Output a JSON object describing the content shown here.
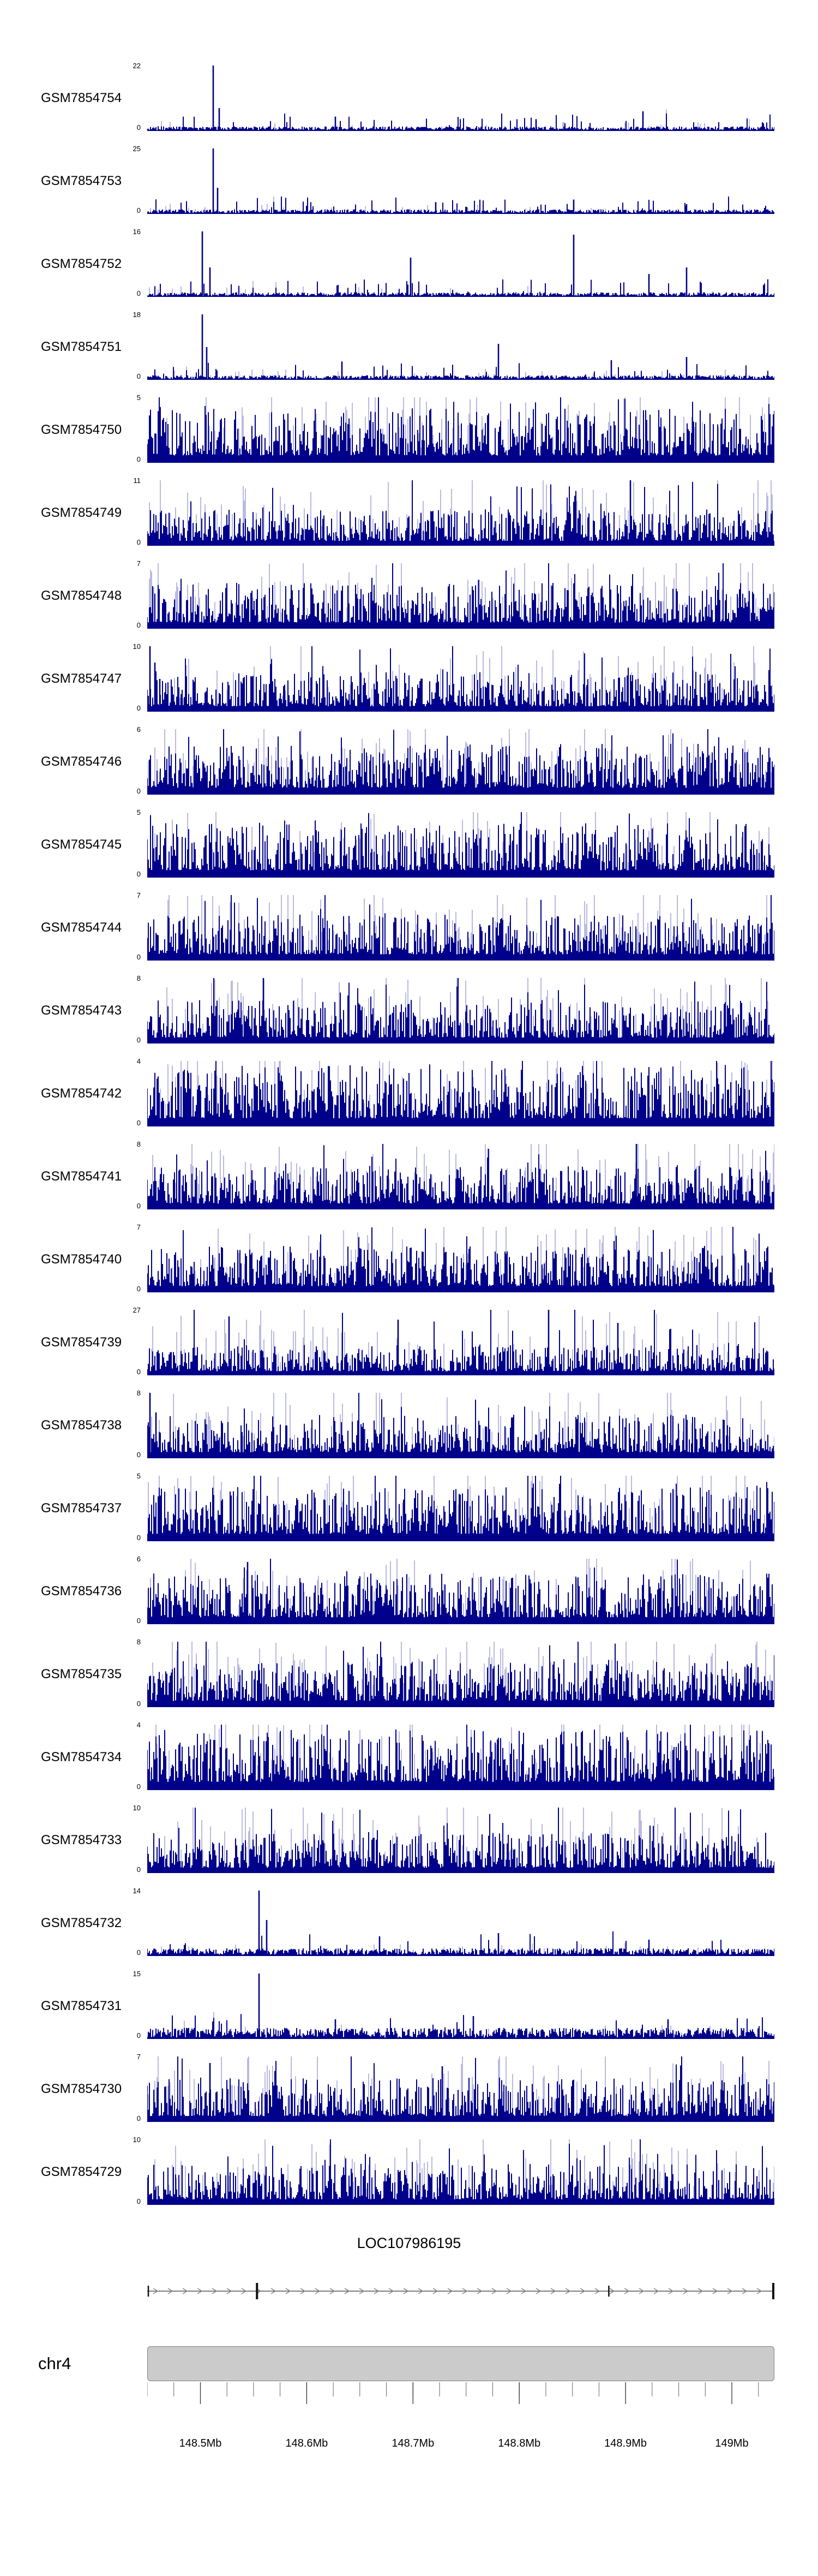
{
  "chart_data": {
    "type": "area",
    "description": "Genome browser coverage tracks",
    "signal_color": "#00008B",
    "x_axis": {
      "unit": "Mb",
      "min": 148.45,
      "max": 149.04,
      "minor_step": 0.025,
      "major_ticks": [
        {
          "value": 148.5,
          "label": "148.5Mb"
        },
        {
          "value": 148.6,
          "label": "148.6Mb"
        },
        {
          "value": 148.7,
          "label": "148.7Mb"
        },
        {
          "value": 148.8,
          "label": "148.8Mb"
        },
        {
          "value": 148.9,
          "label": "148.9Mb"
        },
        {
          "value": 149.0,
          "label": "149Mb"
        }
      ]
    },
    "tracks": [
      {
        "label": "GSM7854754",
        "ymax": 22,
        "ymin": 0,
        "style": "sparse",
        "mean": 0.05,
        "seed": 1,
        "spikes": [
          [
            0.105,
            1.0
          ],
          [
            0.115,
            0.35
          ],
          [
            0.3,
            0.22
          ],
          [
            0.62,
            0.18
          ],
          [
            0.79,
            0.3
          ]
        ]
      },
      {
        "label": "GSM7854753",
        "ymax": 25,
        "ymin": 0,
        "style": "sparse",
        "mean": 0.05,
        "seed": 2,
        "spikes": [
          [
            0.105,
            1.0
          ],
          [
            0.112,
            0.4
          ],
          [
            0.46,
            0.18
          ],
          [
            0.68,
            0.22
          ],
          [
            0.86,
            0.15
          ]
        ]
      },
      {
        "label": "GSM7854752",
        "ymax": 16,
        "ymin": 0,
        "style": "sparse",
        "mean": 0.07,
        "seed": 3,
        "spikes": [
          [
            0.088,
            1.0
          ],
          [
            0.1,
            0.45
          ],
          [
            0.42,
            0.6
          ],
          [
            0.68,
            0.95
          ],
          [
            0.8,
            0.35
          ],
          [
            0.86,
            0.45
          ]
        ]
      },
      {
        "label": "GSM7854751",
        "ymax": 18,
        "ymin": 0,
        "style": "sparse",
        "mean": 0.06,
        "seed": 4,
        "spikes": [
          [
            0.088,
            1.0
          ],
          [
            0.095,
            0.5
          ],
          [
            0.31,
            0.28
          ],
          [
            0.56,
            0.55
          ],
          [
            0.74,
            0.3
          ],
          [
            0.86,
            0.35
          ]
        ]
      },
      {
        "label": "GSM7854750",
        "ymax": 5,
        "ymin": 0,
        "style": "dense",
        "mean": 0.45,
        "seed": 5,
        "spikes": []
      },
      {
        "label": "GSM7854749",
        "ymax": 11,
        "ymin": 0,
        "style": "dense",
        "mean": 0.3,
        "seed": 6,
        "spikes": [
          [
            0.77,
            1.0
          ]
        ]
      },
      {
        "label": "GSM7854748",
        "ymax": 7,
        "ymin": 0,
        "style": "dense",
        "mean": 0.38,
        "seed": 7,
        "spikes": []
      },
      {
        "label": "GSM7854747",
        "ymax": 10,
        "ymin": 0,
        "style": "dense",
        "mean": 0.33,
        "seed": 8,
        "spikes": [
          [
            0.004,
            1.0
          ],
          [
            0.012,
            0.75
          ],
          [
            0.02,
            0.5
          ]
        ]
      },
      {
        "label": "GSM7854746",
        "ymax": 6,
        "ymin": 0,
        "style": "dense",
        "mean": 0.42,
        "seed": 9,
        "spikes": []
      },
      {
        "label": "GSM7854745",
        "ymax": 5,
        "ymin": 0,
        "style": "dense",
        "mean": 0.45,
        "seed": 10,
        "spikes": []
      },
      {
        "label": "GSM7854744",
        "ymax": 7,
        "ymin": 0,
        "style": "dense",
        "mean": 0.38,
        "seed": 11,
        "spikes": []
      },
      {
        "label": "GSM7854743",
        "ymax": 8,
        "ymin": 0,
        "style": "dense",
        "mean": 0.36,
        "seed": 12,
        "spikes": [
          [
            0.185,
            1.0
          ]
        ]
      },
      {
        "label": "GSM7854742",
        "ymax": 4,
        "ymin": 0,
        "style": "dense",
        "mean": 0.5,
        "seed": 13,
        "spikes": []
      },
      {
        "label": "GSM7854741",
        "ymax": 8,
        "ymin": 0,
        "style": "dense",
        "mean": 0.36,
        "seed": 14,
        "spikes": [
          [
            0.78,
            1.0
          ]
        ]
      },
      {
        "label": "GSM7854740",
        "ymax": 7,
        "ymin": 0,
        "style": "dense",
        "mean": 0.38,
        "seed": 15,
        "spikes": []
      },
      {
        "label": "GSM7854739",
        "ymax": 27,
        "ymin": 0,
        "style": "dense",
        "mean": 0.25,
        "seed": 16,
        "spikes": [
          [
            0.13,
            0.9
          ],
          [
            0.4,
            0.85
          ],
          [
            0.64,
            1.0
          ],
          [
            0.75,
            0.8
          ]
        ]
      },
      {
        "label": "GSM7854738",
        "ymax": 8,
        "ymin": 0,
        "style": "dense",
        "mean": 0.36,
        "seed": 17,
        "spikes": [
          [
            0.004,
            1.0
          ],
          [
            0.014,
            0.7
          ]
        ]
      },
      {
        "label": "GSM7854737",
        "ymax": 5,
        "ymin": 0,
        "style": "dense",
        "mean": 0.45,
        "seed": 18,
        "spikes": []
      },
      {
        "label": "GSM7854736",
        "ymax": 6,
        "ymin": 0,
        "style": "dense",
        "mean": 0.42,
        "seed": 19,
        "spikes": [
          [
            0.16,
            0.95
          ]
        ]
      },
      {
        "label": "GSM7854735",
        "ymax": 8,
        "ymin": 0,
        "style": "dense",
        "mean": 0.38,
        "seed": 20,
        "spikes": []
      },
      {
        "label": "GSM7854734",
        "ymax": 4,
        "ymin": 0,
        "style": "dense",
        "mean": 0.5,
        "seed": 21,
        "spikes": []
      },
      {
        "label": "GSM7854733",
        "ymax": 10,
        "ymin": 0,
        "style": "dense",
        "mean": 0.33,
        "seed": 22,
        "spikes": []
      },
      {
        "label": "GSM7854732",
        "ymax": 14,
        "ymin": 0,
        "style": "low",
        "mean": 0.1,
        "seed": 23,
        "spikes": [
          [
            0.178,
            1.0
          ],
          [
            0.19,
            0.55
          ],
          [
            0.37,
            0.3
          ],
          [
            0.56,
            0.35
          ],
          [
            0.8,
            0.25
          ]
        ]
      },
      {
        "label": "GSM7854731",
        "ymax": 15,
        "ymin": 0,
        "style": "low",
        "mean": 0.15,
        "seed": 24,
        "spikes": [
          [
            0.178,
            1.0
          ],
          [
            0.3,
            0.3
          ],
          [
            0.52,
            0.35
          ],
          [
            0.83,
            0.3
          ]
        ]
      },
      {
        "label": "GSM7854730",
        "ymax": 7,
        "ymin": 0,
        "style": "dense",
        "mean": 0.36,
        "seed": 25,
        "spikes": [
          [
            0.1,
            0.9
          ],
          [
            0.47,
            0.85
          ]
        ]
      },
      {
        "label": "GSM7854729",
        "ymax": 10,
        "ymin": 0,
        "style": "dense",
        "mean": 0.34,
        "seed": 26,
        "spikes": []
      }
    ],
    "gene_track": {
      "title": "LOC107986195",
      "strand": "forward",
      "exon_marks": [
        {
          "pos": 0.0,
          "size": "small"
        },
        {
          "pos": 0.175,
          "size": "tall"
        },
        {
          "pos": 0.736,
          "size": "small"
        },
        {
          "pos": 1.0,
          "size": "tall"
        }
      ]
    },
    "ideogram": {
      "chromosome": "chr4",
      "fill": "#cbcbcb",
      "border": "#808080"
    }
  }
}
